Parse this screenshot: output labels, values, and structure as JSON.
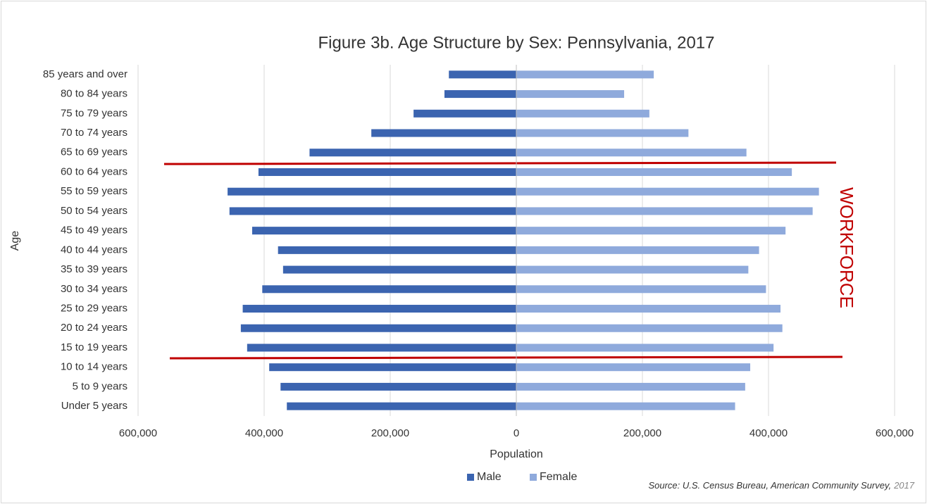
{
  "chart_data": {
    "type": "pyramid",
    "title": "Figure 3b. Age Structure by Sex: Pennsylvania, 2017",
    "x_label": "Population",
    "y_label": "Age",
    "annotation": "WORKFORCE",
    "source": "Source: U.S. Census Bureau, American Community Survey,",
    "source_year": "2017",
    "categories": [
      "85 years and over",
      "80 to 84 years",
      "75 to 79 years",
      "70 to 74 years",
      "65 to 69 years",
      "60 to 64 years",
      "55 to 59 years",
      "50 to 54 years",
      "45 to 49 years",
      "40 to 44 years",
      "35 to 39 years",
      "30 to 34 years",
      "25 to 29 years",
      "20 to 24 years",
      "15 to 19 years",
      "10 to 14 years",
      "5 to 9 years",
      "Under 5 years"
    ],
    "series": [
      {
        "name": "Male",
        "color": "#3b64b0",
        "values": [
          -107000,
          -114000,
          -163000,
          -230000,
          -328000,
          -409000,
          -458000,
          -455000,
          -419000,
          -378000,
          -370000,
          -403000,
          -434000,
          -437000,
          -427000,
          -392000,
          -374000,
          -364000
        ]
      },
      {
        "name": "Female",
        "color": "#8faadc",
        "values": [
          218000,
          171000,
          211000,
          273000,
          365000,
          437000,
          480000,
          470000,
          427000,
          385000,
          368000,
          396000,
          419000,
          422000,
          408000,
          371000,
          363000,
          347000
        ]
      }
    ],
    "xlim": [
      -600000,
      600000
    ],
    "xticks": [
      {
        "value": -600000,
        "label": "600,000"
      },
      {
        "value": -400000,
        "label": "400,000"
      },
      {
        "value": -200000,
        "label": "200,000"
      },
      0,
      {
        "value": 200000,
        "label": "200,000"
      },
      {
        "value": 400000,
        "label": "400,000"
      },
      {
        "value": 600000,
        "label": "600,000"
      }
    ],
    "grid": true
  }
}
